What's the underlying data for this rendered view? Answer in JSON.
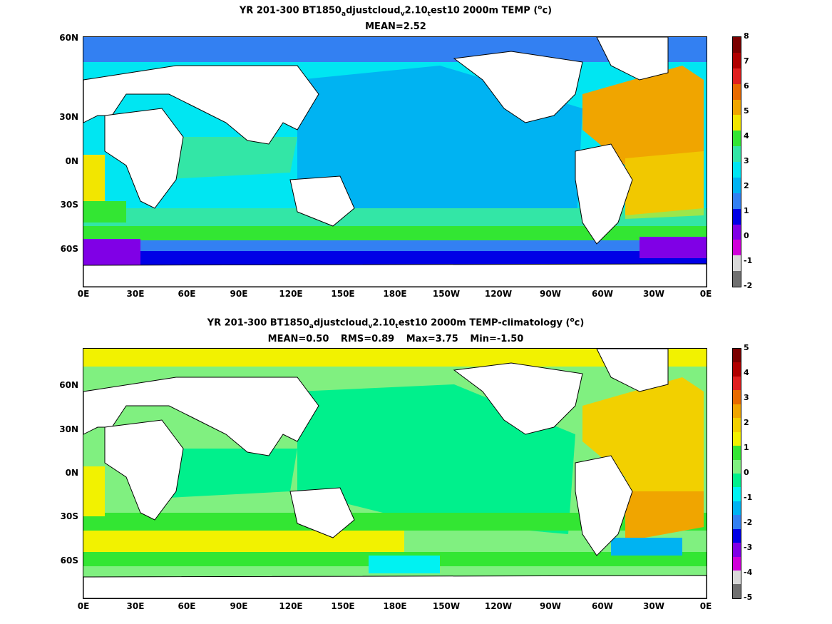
{
  "panel1": {
    "title_parts": [
      "YR 201-300 BT1850",
      "a",
      "djustcloud",
      "v",
      "2.10",
      "t",
      "est10 2000m TEMP (",
      "o",
      "c)"
    ],
    "stats": [
      "MEAN=2.52"
    ],
    "colorbar": {
      "labels": [
        "8",
        "7",
        "6",
        "5",
        "4",
        "3",
        "2",
        "1",
        "0",
        "-1",
        "-2"
      ],
      "colors": [
        "#7a0000",
        "#b00000",
        "#e02020",
        "#e86a00",
        "#f0a500",
        "#f2e600",
        "#33e633",
        "#33e6a6",
        "#00e6f2",
        "#00b3f2",
        "#3380f2",
        "#0000e6",
        "#8000e6",
        "#d000d9",
        "#d9d9d9",
        "#707070"
      ]
    }
  },
  "panel2": {
    "title_parts": [
      "YR 201-300 BT1850",
      "a",
      "djustcloud",
      "v",
      "2.10",
      "t",
      "est10 2000m TEMP-climatology (",
      "o",
      "c)"
    ],
    "stats": [
      "MEAN=0.50",
      "RMS=0.89",
      "Max=3.75",
      "Min=-1.50"
    ],
    "colorbar": {
      "labels": [
        "5",
        "4",
        "3",
        "2",
        "1",
        "0",
        "-1",
        "-2",
        "-3",
        "-4",
        "-5"
      ],
      "colors": [
        "#7a0000",
        "#b00000",
        "#e02020",
        "#e86a00",
        "#f0a500",
        "#f2d000",
        "#f2f200",
        "#33e633",
        "#80f080",
        "#00f08c",
        "#00f2f2",
        "#00b3f2",
        "#3380f2",
        "#0000e6",
        "#8000e6",
        "#d000d9",
        "#d9d9d9",
        "#707070"
      ]
    }
  },
  "axes": {
    "y_labels": [
      "60N",
      "30N",
      "0N",
      "30S",
      "60S"
    ],
    "x_labels": [
      "0E",
      "30E",
      "60E",
      "90E",
      "120E",
      "150E",
      "180E",
      "150W",
      "120W",
      "90W",
      "60W",
      "30W",
      "0E"
    ]
  },
  "colors": {
    "land": "#ffffff",
    "coast": "#000000"
  }
}
